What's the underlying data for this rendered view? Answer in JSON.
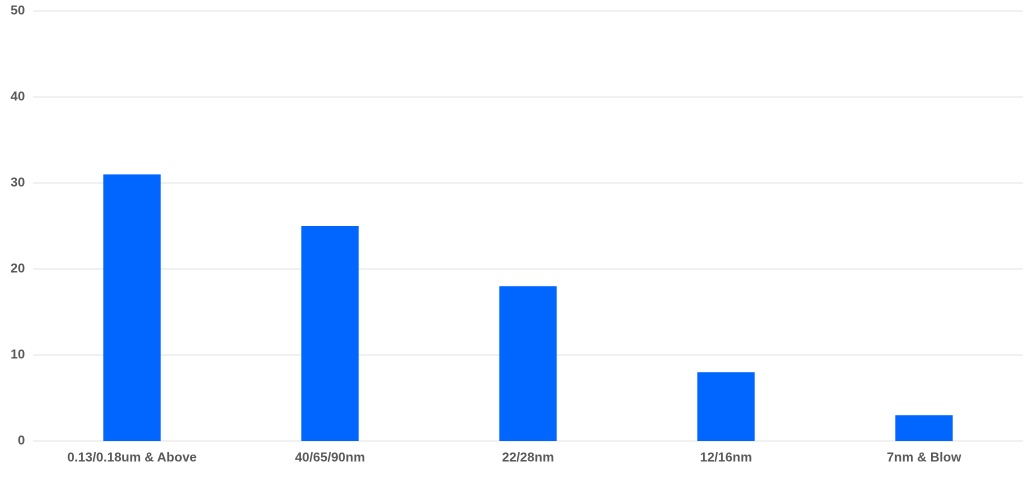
{
  "chart_data": {
    "type": "bar",
    "categories": [
      "0.13/0.18um & Above",
      "40/65/90nm",
      "22/28nm",
      "12/16nm",
      "7nm & Blow"
    ],
    "values": [
      31,
      25,
      18,
      8,
      3
    ],
    "color": "#0066ff",
    "ylim": [
      0,
      50
    ],
    "yticks": [
      0,
      10,
      20,
      30,
      40,
      50
    ],
    "grid": true
  }
}
